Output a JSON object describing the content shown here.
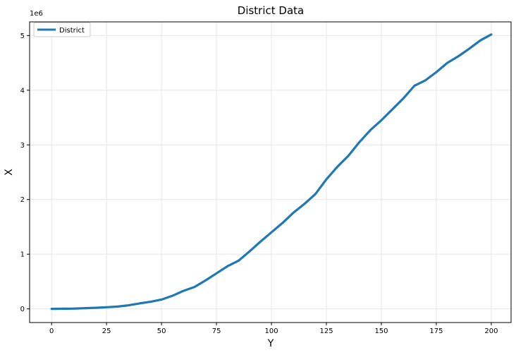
{
  "chart_data": {
    "type": "line",
    "title": "District Data",
    "xlabel": "Y",
    "ylabel": "X",
    "y_offset_label": "1e6",
    "xlim": [
      -10,
      209
    ],
    "ylim": [
      -250000,
      5250000
    ],
    "x_ticks": [
      0,
      25,
      50,
      75,
      100,
      125,
      150,
      175,
      200
    ],
    "x_tick_labels": [
      "0",
      "25",
      "50",
      "75",
      "100",
      "125",
      "150",
      "175",
      "200"
    ],
    "y_ticks": [
      0,
      1000000,
      2000000,
      3000000,
      4000000,
      5000000
    ],
    "y_tick_labels": [
      "0",
      "1",
      "2",
      "3",
      "4",
      "5"
    ],
    "grid": true,
    "legend": {
      "position": "top-left",
      "entries": [
        "District"
      ]
    },
    "series": [
      {
        "name": "District",
        "color": "#1f77b4",
        "x": [
          0,
          10,
          20,
          25,
          30,
          35,
          40,
          45,
          50,
          55,
          60,
          65,
          70,
          75,
          80,
          85,
          90,
          95,
          100,
          105,
          110,
          115,
          120,
          125,
          130,
          135,
          140,
          145,
          150,
          155,
          160,
          165,
          170,
          175,
          180,
          185,
          190,
          195,
          200
        ],
        "values": [
          0,
          5000,
          20000,
          30000,
          42000,
          65000,
          100000,
          130000,
          170000,
          240000,
          330000,
          400000,
          520000,
          650000,
          780000,
          880000,
          1050000,
          1230000,
          1400000,
          1570000,
          1760000,
          1920000,
          2100000,
          2370000,
          2600000,
          2800000,
          3050000,
          3270000,
          3450000,
          3650000,
          3850000,
          4080000,
          4180000,
          4330000,
          4500000,
          4620000,
          4760000,
          4910000,
          5020000
        ]
      }
    ]
  },
  "colors": {
    "line": "#1f77b4",
    "grid": "#e6e6e6",
    "axis": "#000000",
    "background": "#ffffff"
  }
}
